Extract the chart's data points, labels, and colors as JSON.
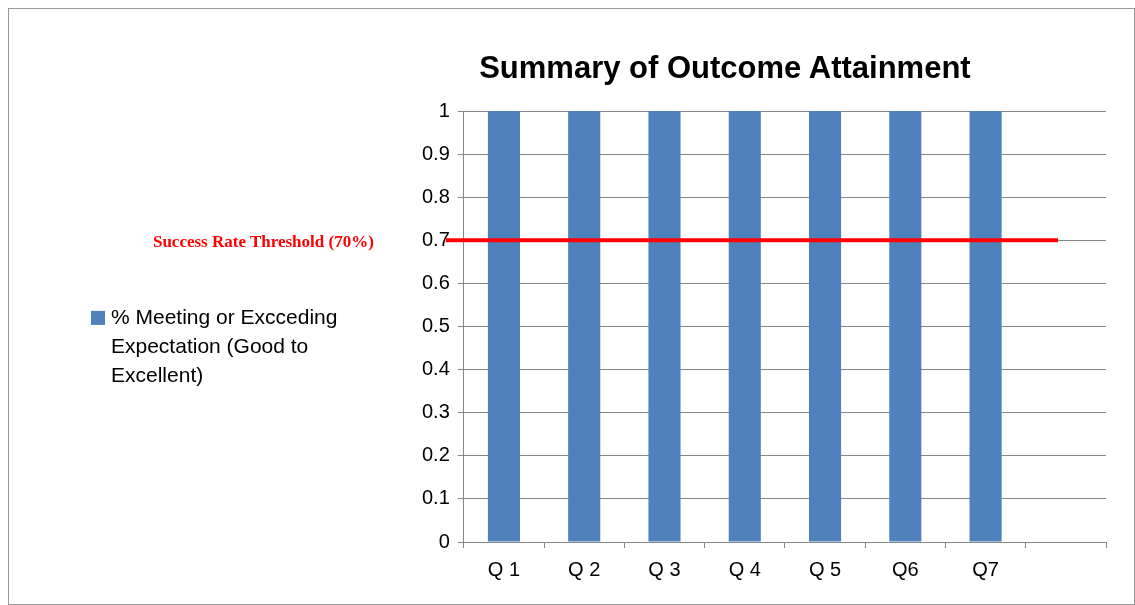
{
  "chart_data": {
    "type": "bar",
    "title": "Summary of Outcome Attainment",
    "categories": [
      "Q 1",
      "Q 2",
      "Q 3",
      "Q 4",
      "Q 5",
      "Q6",
      "Q7",
      null
    ],
    "series": [
      {
        "name": "% Meeting or Excceding Expectation (Good to Excellent)",
        "color": "#4f81bd",
        "values": [
          1,
          1,
          1,
          1,
          1,
          1,
          1,
          null
        ]
      }
    ],
    "ylim": [
      0,
      1
    ],
    "yticks": [
      0,
      0.1,
      0.2,
      0.3,
      0.4,
      0.5,
      0.6,
      0.7,
      0.8,
      0.9,
      1
    ],
    "ref_lines": [
      {
        "axis": "y",
        "value": 0.7,
        "label": "Success Rate Threshold (70%)",
        "color": "#ff0000"
      }
    ],
    "grid": "y",
    "legend": "left"
  }
}
